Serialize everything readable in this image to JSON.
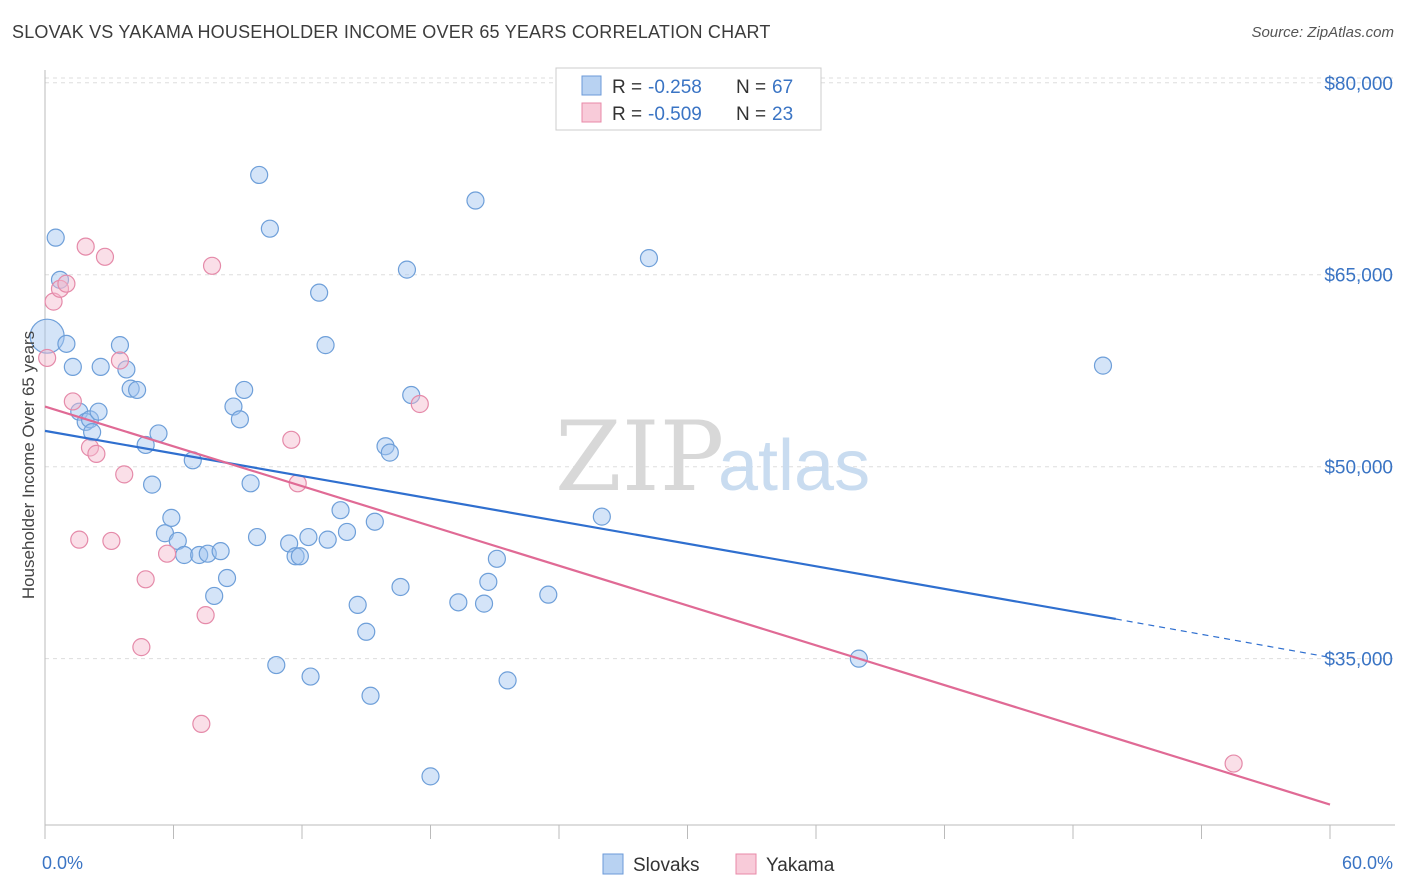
{
  "title": "SLOVAK VS YAKAMA HOUSEHOLDER INCOME OVER 65 YEARS CORRELATION CHART",
  "source": "Source: ZipAtlas.com",
  "watermark": {
    "zip": "ZIP",
    "atlas": "atlas"
  },
  "legend": {
    "rows": [
      {
        "r_label": "R =",
        "r_value": "-0.258",
        "n_label": "N =",
        "n_value": "67",
        "color": "#a9c8f0",
        "stroke": "#6b9ad8"
      },
      {
        "r_label": "R =",
        "r_value": "-0.509",
        "n_label": "N =",
        "n_value": "23",
        "color": "#f5bfd0",
        "stroke": "#e88aa8"
      }
    ],
    "bottom": [
      "Slovaks",
      "Yakama"
    ]
  },
  "colors": {
    "slovak_fill": "rgba(160,195,240,0.45)",
    "slovak_stroke": "#6e9fd9",
    "slovak_line": "#2f6fcf",
    "yakama_fill": "rgba(245,185,205,0.45)",
    "yakama_stroke": "#e58aa9",
    "yakama_line": "#e06a95",
    "grid": "#dddddd"
  },
  "chart_data": {
    "type": "scatter",
    "title": "SLOVAK VS YAKAMA HOUSEHOLDER INCOME OVER 65 YEARS CORRELATION CHART",
    "xlabel": "",
    "ylabel": "Householder Income Over 65 years",
    "xlim": [
      0,
      60
    ],
    "ylim": [
      22000,
      81000
    ],
    "x_tick_labels": [
      "0.0%",
      "60.0%"
    ],
    "y_ticks": [
      35000,
      50000,
      65000,
      80000
    ],
    "y_tick_labels": [
      "$35,000",
      "$50,000",
      "$65,000",
      "$80,000"
    ],
    "grid": true,
    "legend_position": "top-center",
    "series": [
      {
        "name": "Slovaks",
        "r": -0.258,
        "n": 67,
        "trend": {
          "x": [
            0,
            50,
            60
          ],
          "y": [
            52800,
            38100,
            35100
          ],
          "dashed_from_x": 50
        },
        "points": [
          [
            0.1,
            60200
          ],
          [
            0.5,
            67900
          ],
          [
            0.7,
            64600
          ],
          [
            1.0,
            59600
          ],
          [
            1.3,
            57800
          ],
          [
            1.6,
            54300
          ],
          [
            1.9,
            53500
          ],
          [
            2.1,
            53700
          ],
          [
            2.2,
            52700
          ],
          [
            2.5,
            54300
          ],
          [
            2.6,
            57800
          ],
          [
            3.5,
            59500
          ],
          [
            3.8,
            57600
          ],
          [
            4.0,
            56100
          ],
          [
            4.3,
            56000
          ],
          [
            4.7,
            51700
          ],
          [
            5.0,
            48600
          ],
          [
            5.3,
            52600
          ],
          [
            5.6,
            44800
          ],
          [
            5.9,
            46000
          ],
          [
            6.2,
            44200
          ],
          [
            6.5,
            43100
          ],
          [
            6.9,
            50500
          ],
          [
            7.2,
            43100
          ],
          [
            7.6,
            43200
          ],
          [
            7.9,
            39900
          ],
          [
            8.2,
            43400
          ],
          [
            8.5,
            41300
          ],
          [
            8.8,
            54700
          ],
          [
            9.1,
            53700
          ],
          [
            9.3,
            56000
          ],
          [
            9.6,
            48700
          ],
          [
            9.9,
            44500
          ],
          [
            10.0,
            72800
          ],
          [
            10.5,
            68600
          ],
          [
            10.8,
            34500
          ],
          [
            11.4,
            44000
          ],
          [
            11.7,
            43000
          ],
          [
            11.9,
            43000
          ],
          [
            12.3,
            44500
          ],
          [
            12.4,
            33600
          ],
          [
            12.8,
            63600
          ],
          [
            13.1,
            59500
          ],
          [
            13.2,
            44300
          ],
          [
            13.8,
            46600
          ],
          [
            14.1,
            44900
          ],
          [
            14.6,
            39200
          ],
          [
            15.0,
            37100
          ],
          [
            15.2,
            32100
          ],
          [
            15.4,
            45700
          ],
          [
            15.9,
            51600
          ],
          [
            16.1,
            51100
          ],
          [
            16.6,
            40600
          ],
          [
            16.9,
            65400
          ],
          [
            17.1,
            55600
          ],
          [
            18.0,
            25800
          ],
          [
            19.3,
            39400
          ],
          [
            20.1,
            70800
          ],
          [
            20.5,
            39300
          ],
          [
            20.7,
            41000
          ],
          [
            21.1,
            42800
          ],
          [
            21.6,
            33300
          ],
          [
            23.5,
            40000
          ],
          [
            26.0,
            46100
          ],
          [
            28.2,
            66300
          ],
          [
            38.0,
            35000
          ],
          [
            49.4,
            57900
          ]
        ]
      },
      {
        "name": "Yakama",
        "r": -0.509,
        "n": 23,
        "trend": {
          "x": [
            0,
            60
          ],
          "y": [
            54700,
            23600
          ]
        },
        "points": [
          [
            0.1,
            58500
          ],
          [
            0.4,
            62900
          ],
          [
            0.7,
            63900
          ],
          [
            1.0,
            64300
          ],
          [
            1.3,
            55100
          ],
          [
            1.6,
            44300
          ],
          [
            1.9,
            67200
          ],
          [
            2.1,
            51500
          ],
          [
            2.4,
            51000
          ],
          [
            2.8,
            66400
          ],
          [
            3.1,
            44200
          ],
          [
            3.5,
            58300
          ],
          [
            3.7,
            49400
          ],
          [
            4.5,
            35900
          ],
          [
            4.7,
            41200
          ],
          [
            5.7,
            43200
          ],
          [
            7.3,
            29900
          ],
          [
            7.5,
            38400
          ],
          [
            7.8,
            65700
          ],
          [
            11.5,
            52100
          ],
          [
            11.8,
            48700
          ],
          [
            17.5,
            54900
          ],
          [
            55.5,
            26800
          ]
        ]
      }
    ]
  }
}
